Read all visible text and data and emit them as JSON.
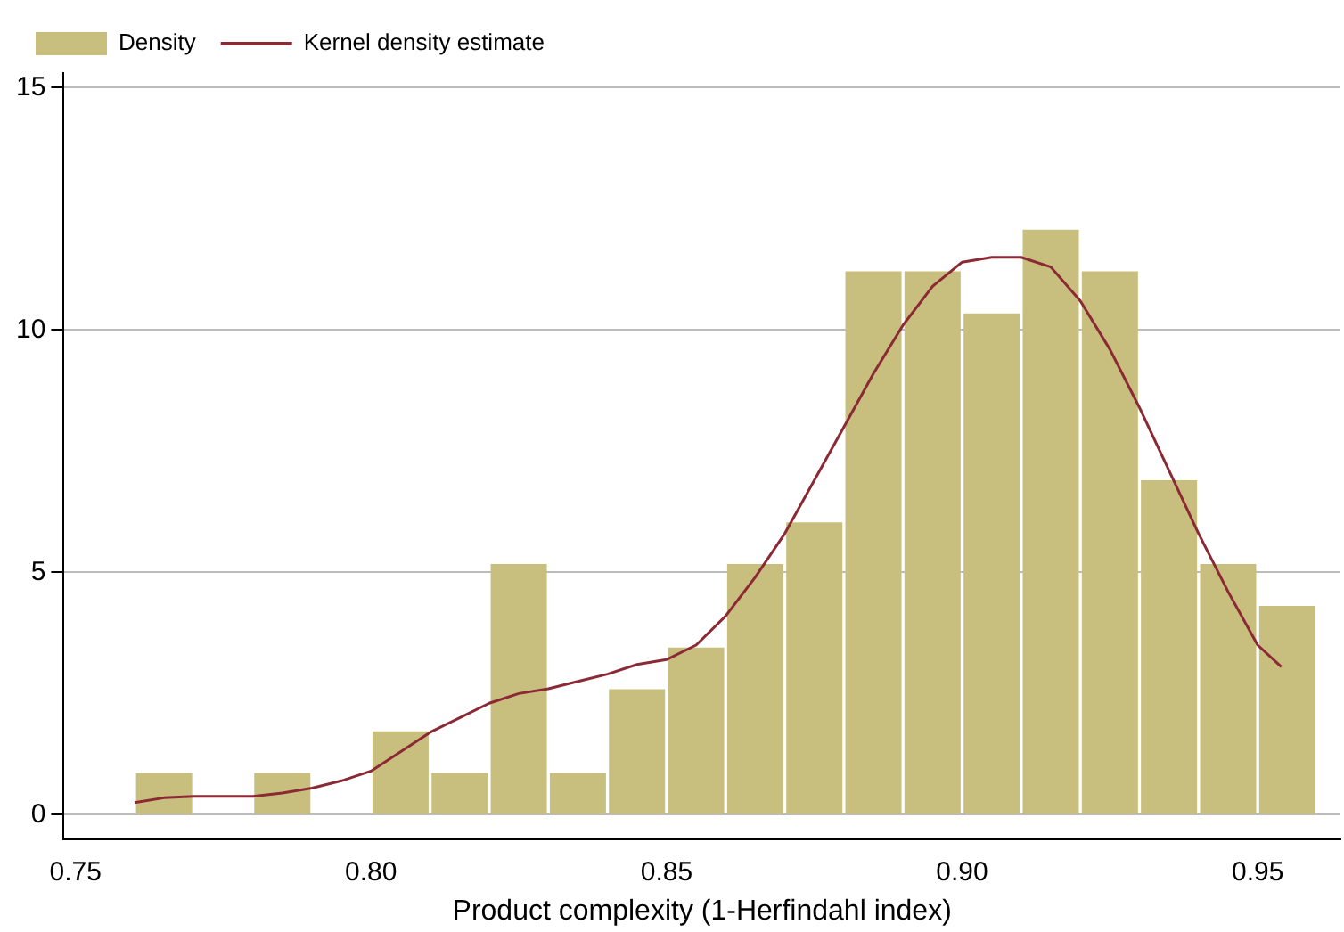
{
  "chart_data": {
    "type": "histogram",
    "xlabel": "Product complexity (1-Herfindahl index)",
    "xlim": [
      0.748,
      0.964
    ],
    "xticks": [
      {
        "value": 0.75,
        "label": "0.75"
      },
      {
        "value": 0.8,
        "label": "0.80"
      },
      {
        "value": 0.85,
        "label": "0.85"
      },
      {
        "value": 0.9,
        "label": "0.90"
      },
      {
        "value": 0.95,
        "label": "0.95"
      }
    ],
    "ylim": [
      -0.5,
      15.3
    ],
    "yticks": [
      0,
      5,
      10,
      15
    ],
    "grid": "y",
    "legend": "top left",
    "series": [
      {
        "name": "Density",
        "color": "#c8bf7e",
        "bins": [
          0.76,
          0.77,
          0.78,
          0.79,
          0.8,
          0.81,
          0.82,
          0.83,
          0.84,
          0.85,
          0.86,
          0.87,
          0.88,
          0.89,
          0.9,
          0.91,
          0.92,
          0.93,
          0.94,
          0.95,
          0.96
        ],
        "values": [
          0.86,
          0,
          0.86,
          0,
          1.72,
          0.86,
          5.17,
          0.86,
          2.59,
          3.45,
          5.17,
          6.03,
          11.21,
          11.21,
          10.34,
          12.07,
          11.21,
          6.9,
          5.17,
          4.31
        ]
      },
      {
        "name": "Kernel density estimate",
        "type": "line",
        "color": "#8b2a35",
        "marker": "none",
        "x": [
          0.76,
          0.765,
          0.77,
          0.775,
          0.78,
          0.785,
          0.79,
          0.795,
          0.8,
          0.805,
          0.81,
          0.815,
          0.82,
          0.825,
          0.83,
          0.835,
          0.84,
          0.845,
          0.85,
          0.855,
          0.86,
          0.865,
          0.87,
          0.875,
          0.88,
          0.885,
          0.89,
          0.895,
          0.9,
          0.905,
          0.91,
          0.915,
          0.92,
          0.925,
          0.93,
          0.935,
          0.94,
          0.945,
          0.95,
          0.954
        ],
        "values": [
          0.25,
          0.35,
          0.38,
          0.38,
          0.38,
          0.45,
          0.55,
          0.7,
          0.9,
          1.3,
          1.7,
          2.0,
          2.3,
          2.5,
          2.6,
          2.75,
          2.9,
          3.1,
          3.2,
          3.5,
          4.1,
          4.9,
          5.8,
          6.9,
          8.0,
          9.1,
          10.1,
          10.9,
          11.4,
          11.5,
          11.5,
          11.3,
          10.6,
          9.6,
          8.4,
          7.1,
          5.8,
          4.6,
          3.5,
          3.05
        ]
      }
    ]
  }
}
